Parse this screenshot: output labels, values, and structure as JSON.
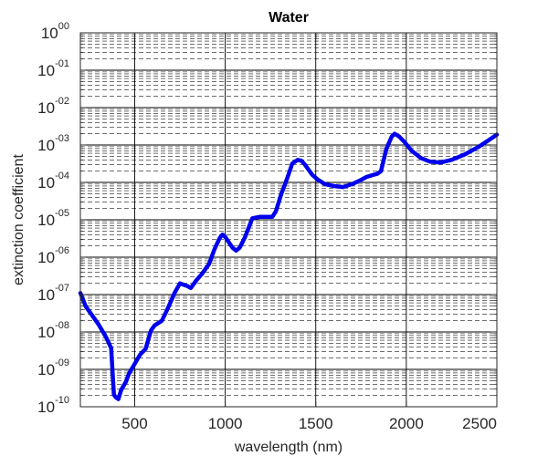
{
  "chart_data": {
    "type": "line",
    "title": "Water",
    "xlabel": "wavelength (nm)",
    "ylabel": "extinction coefficient",
    "xlim": [
      200,
      2500
    ],
    "ylim": [
      1e-10,
      1
    ],
    "yscale": "log",
    "grid": true,
    "minor_grid": true,
    "x_ticks": [
      {
        "value": 500,
        "label": "500"
      },
      {
        "value": 1000,
        "label": "1000"
      },
      {
        "value": 1500,
        "label": "1500"
      },
      {
        "value": 2000,
        "label": "2000"
      },
      {
        "value": 2500,
        "label": "2500"
      }
    ],
    "y_ticks": [
      {
        "value": 1,
        "base": "10",
        "exp": "00"
      },
      {
        "value": 0.1,
        "base": "10",
        "exp": "-01"
      },
      {
        "value": 0.01,
        "base": "10",
        "exp": "-02"
      },
      {
        "value": 0.001,
        "base": "10",
        "exp": "-03"
      },
      {
        "value": 0.0001,
        "base": "10",
        "exp": "-04"
      },
      {
        "value": 1e-05,
        "base": "10",
        "exp": "-05"
      },
      {
        "value": 1e-06,
        "base": "10",
        "exp": "-06"
      },
      {
        "value": 1e-07,
        "base": "10",
        "exp": "-07"
      },
      {
        "value": 1e-08,
        "base": "10",
        "exp": "-08"
      },
      {
        "value": 1e-09,
        "base": "10",
        "exp": "-09"
      },
      {
        "value": 1e-10,
        "base": "10",
        "exp": "-10"
      }
    ],
    "series": [
      {
        "color": "#0000ee",
        "x": [
          200,
          230,
          260,
          300,
          340,
          370,
          385,
          395,
          410,
          425,
          450,
          470,
          500,
          530,
          560,
          590,
          610,
          650,
          680,
          720,
          750,
          790,
          810,
          840,
          870,
          910,
          940,
          970,
          985,
          1000,
          1020,
          1040,
          1060,
          1080,
          1110,
          1150,
          1190,
          1230,
          1260,
          1280,
          1310,
          1340,
          1370,
          1400,
          1420,
          1440,
          1460,
          1480,
          1510,
          1550,
          1600,
          1650,
          1700,
          1740,
          1780,
          1820,
          1840,
          1860,
          1890,
          1920,
          1935,
          1960,
          1990,
          2030,
          2080,
          2130,
          2190,
          2250,
          2320,
          2400,
          2460,
          2500
        ],
        "y": [
          1.1e-07,
          4.8e-08,
          3e-08,
          1.6e-08,
          7.5e-09,
          3.7e-09,
          2.1e-10,
          1.8e-10,
          1.6e-10,
          2.8e-10,
          4.5e-10,
          8e-10,
          1.4e-09,
          2.5e-09,
          3.5e-09,
          1.1e-08,
          1.5e-08,
          2e-08,
          4e-08,
          1.1e-07,
          2e-07,
          1.7e-07,
          1.5e-07,
          2.4e-07,
          3.5e-07,
          6.5e-07,
          1.6e-06,
          3.3e-06,
          4e-06,
          3.5e-06,
          2.5e-06,
          1.8e-06,
          1.5e-06,
          1.8e-06,
          3.5e-06,
          1.1e-05,
          1.2e-05,
          1.2e-05,
          1.2e-05,
          1.7e-05,
          5e-05,
          0.00012,
          0.00032,
          0.0004,
          0.00038,
          0.0003,
          0.00022,
          0.00016,
          0.00012,
          9e-05,
          8e-05,
          7.5e-05,
          9e-05,
          0.00011,
          0.00014,
          0.00016,
          0.00017,
          0.0002,
          0.0008,
          0.0017,
          0.002,
          0.0017,
          0.0012,
          0.0007,
          0.00045,
          0.00036,
          0.00034,
          0.0004,
          0.00055,
          0.0009,
          0.0014,
          0.0019
        ]
      }
    ]
  }
}
